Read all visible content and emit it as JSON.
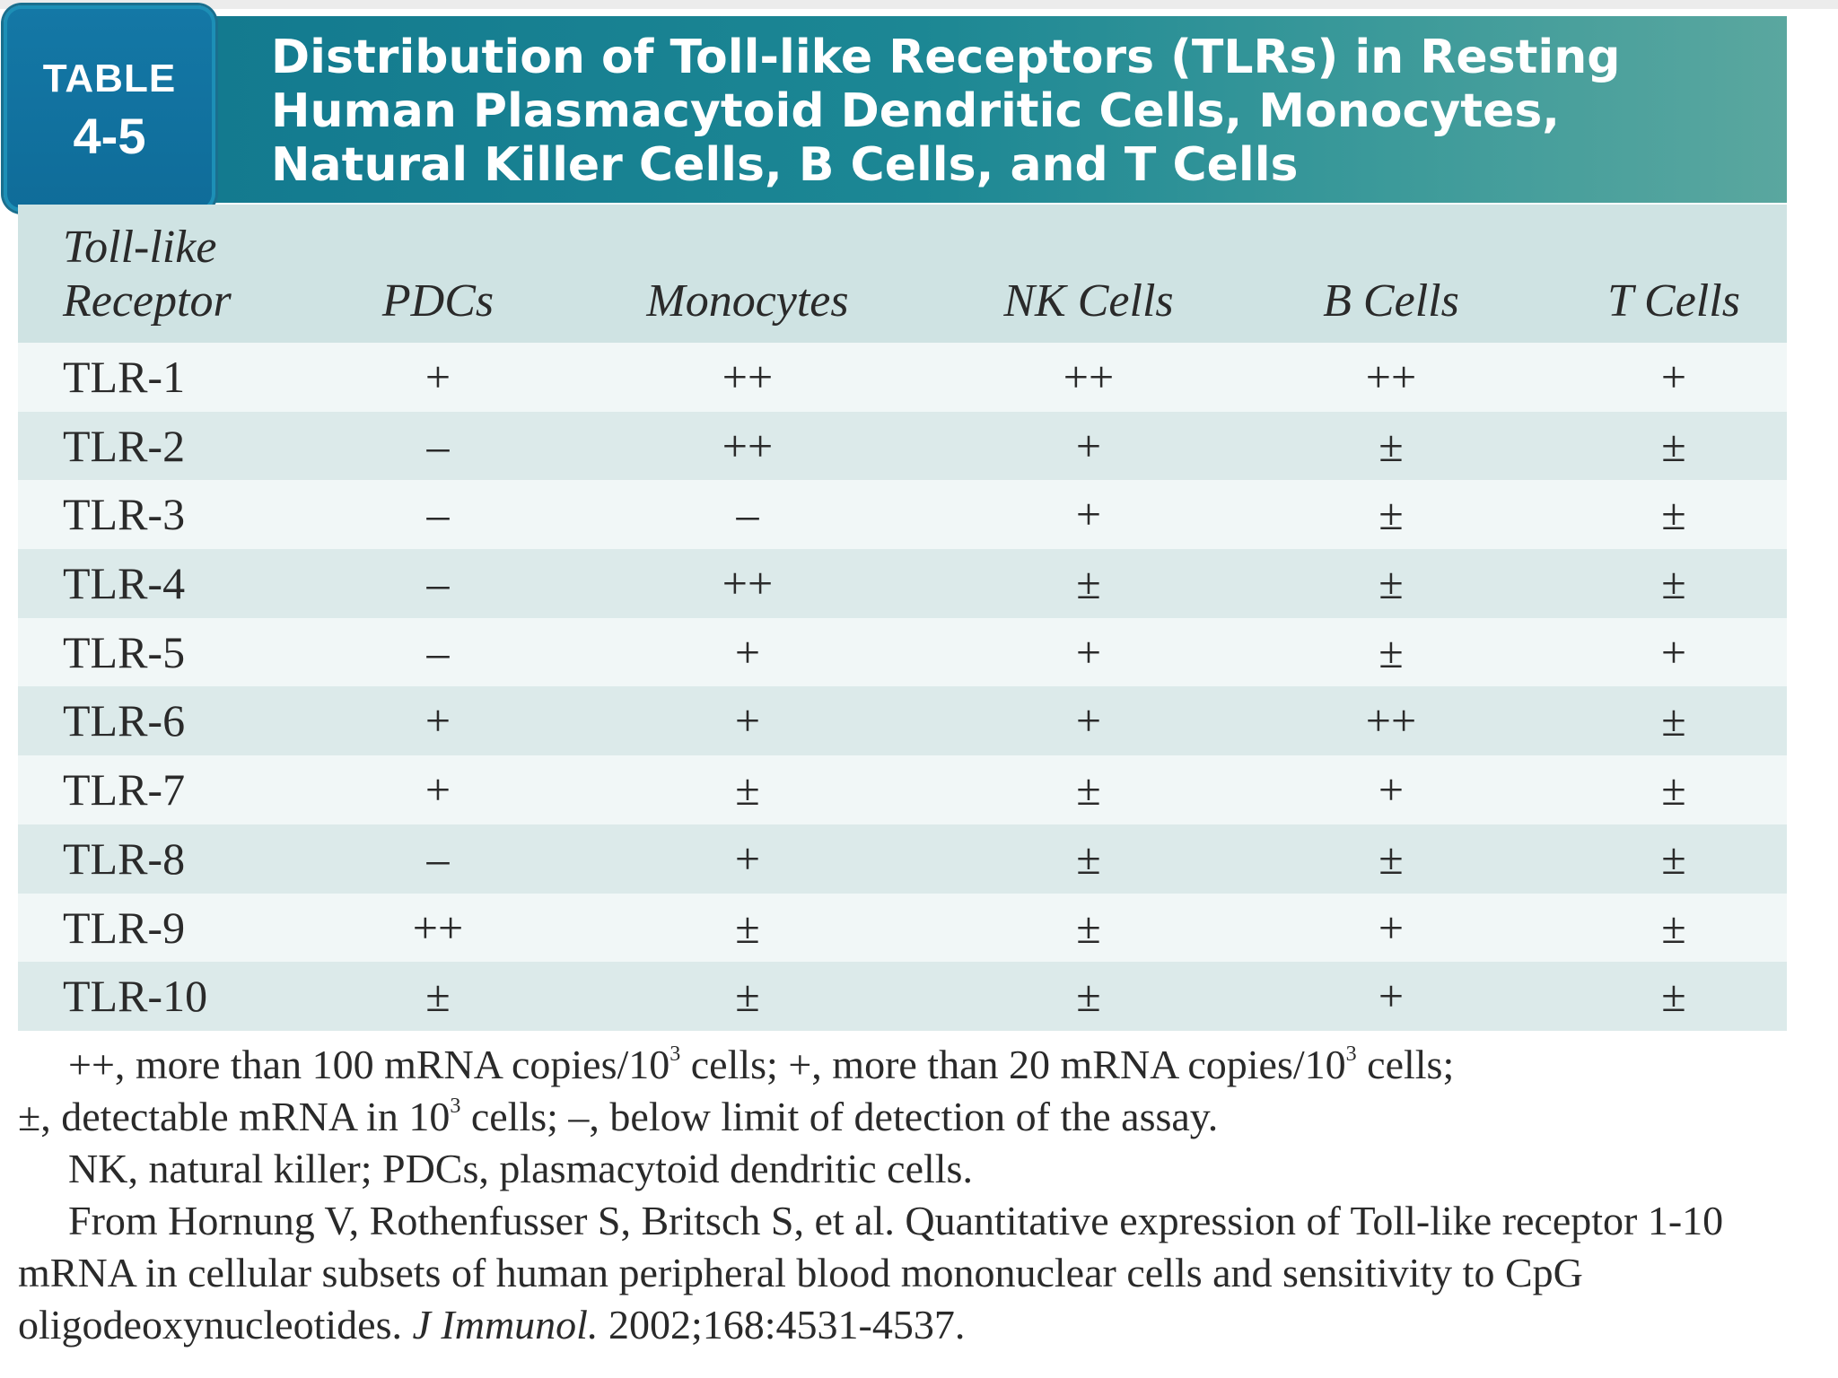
{
  "tab": {
    "word": "TABLE",
    "number": "4-5"
  },
  "title": {
    "line1": "Distribution of Toll-like Receptors (TLRs) in Resting",
    "line2": "Human Plasmacytoid Dendritic Cells, Monocytes,",
    "line3": "Natural Killer Cells, B Cells, and T Cells"
  },
  "columns": {
    "receptor_line1": "Toll-like",
    "receptor_line2": "Receptor",
    "pdcs": "PDCs",
    "monocytes": "Monocytes",
    "nk": "NK Cells",
    "b": "B Cells",
    "t": "T Cells"
  },
  "rows": [
    {
      "receptor": "TLR-1",
      "pdcs": "+",
      "monocytes": "++",
      "nk": "++",
      "b": "++",
      "t": "+"
    },
    {
      "receptor": "TLR-2",
      "pdcs": "–",
      "monocytes": "++",
      "nk": "+",
      "b": "±",
      "t": "±"
    },
    {
      "receptor": "TLR-3",
      "pdcs": "–",
      "monocytes": "–",
      "nk": "+",
      "b": "±",
      "t": "±"
    },
    {
      "receptor": "TLR-4",
      "pdcs": "–",
      "monocytes": "++",
      "nk": "±",
      "b": "±",
      "t": "±"
    },
    {
      "receptor": "TLR-5",
      "pdcs": "–",
      "monocytes": "+",
      "nk": "+",
      "b": "±",
      "t": "+"
    },
    {
      "receptor": "TLR-6",
      "pdcs": "+",
      "monocytes": "+",
      "nk": "+",
      "b": "++",
      "t": "±"
    },
    {
      "receptor": "TLR-7",
      "pdcs": "+",
      "monocytes": "±",
      "nk": "±",
      "b": "+",
      "t": "±"
    },
    {
      "receptor": "TLR-8",
      "pdcs": "–",
      "monocytes": "+",
      "nk": "±",
      "b": "±",
      "t": "±"
    },
    {
      "receptor": "TLR-9",
      "pdcs": "++",
      "monocytes": "±",
      "nk": "±",
      "b": "+",
      "t": "±"
    },
    {
      "receptor": "TLR-10",
      "pdcs": "±",
      "monocytes": "±",
      "nk": "±",
      "b": "+",
      "t": "±"
    }
  ],
  "notes": {
    "legend_a1": "++, more than 100 mRNA copies/10",
    "legend_a2": " cells; +, more than 20 mRNA copies/10",
    "legend_a3": " cells;",
    "legend_b1": "±, detectable mRNA in 10",
    "legend_b2": " cells; –, below limit of detection of the assay.",
    "sup3": "3",
    "abbrev": "NK, natural killer; PDCs, plasmacytoid dendritic cells.",
    "source_pre": "From Hornung V, Rothenfusser S, Britsch S, et al. Quantitative expression of Toll-like receptor 1-10 mRNA in cellular subsets of human peripheral blood mononuclear cells and sensitivity to CpG oligodeoxynucleotides. ",
    "source_journal": "J Immunol.",
    "source_post": " 2002;168:4531-4537."
  }
}
